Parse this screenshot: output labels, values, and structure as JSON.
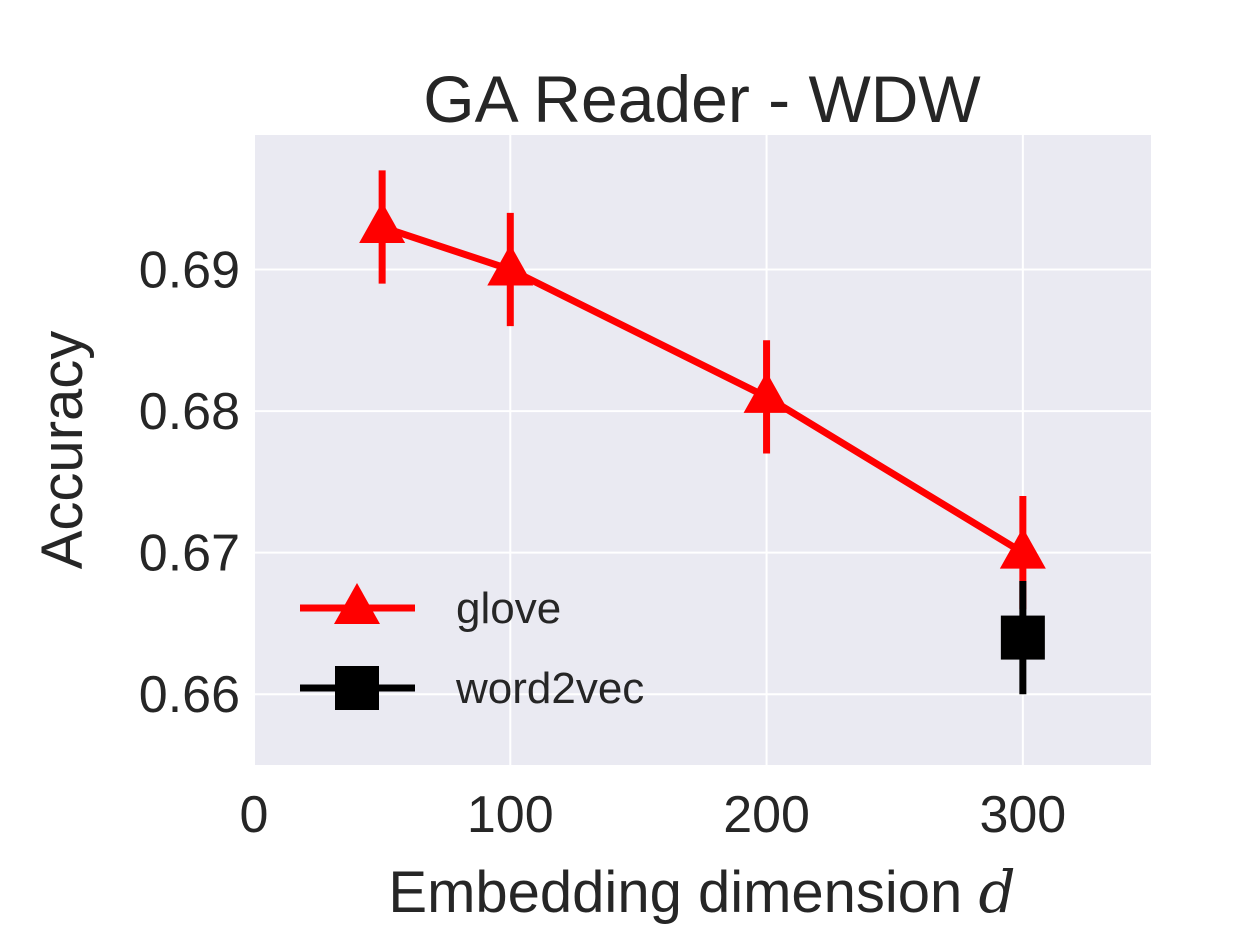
{
  "chart_data": {
    "type": "line",
    "title": "GA Reader - WDW",
    "xlabel": "Embedding dimension",
    "xlabel_var": "d",
    "ylabel": "Accuracy",
    "xlim": [
      0,
      350
    ],
    "ylim": [
      0.655,
      0.6995
    ],
    "xticks": [
      0,
      100,
      200,
      300
    ],
    "xtick_labels": [
      "0",
      "100",
      "200",
      "300"
    ],
    "yticks": [
      0.66,
      0.67,
      0.68,
      0.69
    ],
    "ytick_labels": [
      "0.66",
      "0.67",
      "0.68",
      "0.69"
    ],
    "grid": true,
    "legend_position": "lower-left",
    "series": [
      {
        "name": "glove",
        "color": "#ff0000",
        "marker": "triangle",
        "line": true,
        "x": [
          50,
          100,
          200,
          300
        ],
        "y": [
          0.693,
          0.69,
          0.681,
          0.67
        ],
        "err": [
          0.004,
          0.004,
          0.004,
          0.004
        ]
      },
      {
        "name": "word2vec",
        "color": "#000000",
        "marker": "square",
        "line": false,
        "x": [
          300
        ],
        "y": [
          0.664
        ],
        "err": [
          0.004
        ]
      }
    ]
  }
}
